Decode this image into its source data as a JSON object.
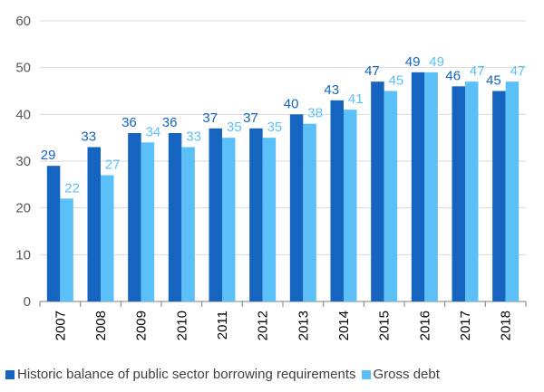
{
  "chart_data": {
    "type": "bar",
    "categories": [
      "2007",
      "2008",
      "2009",
      "2010",
      "2011",
      "2012",
      "2013",
      "2014",
      "2015",
      "2016",
      "2017",
      "2018"
    ],
    "series": [
      {
        "name": "Historic balance of public sector borrowing requirements",
        "color": "#1565C0",
        "values": [
          29,
          33,
          36,
          36,
          37,
          37,
          40,
          43,
          47,
          49,
          46,
          45
        ]
      },
      {
        "name": "Gross debt",
        "color": "#5BC0F8",
        "values": [
          22,
          27,
          34,
          33,
          35,
          35,
          38,
          41,
          45,
          49,
          47,
          47
        ]
      }
    ],
    "ylim": [
      0,
      60
    ],
    "yticks": [
      0,
      10,
      20,
      30,
      40,
      50,
      60
    ],
    "grid": true,
    "legend": "bottom",
    "xlabel": "",
    "ylabel": ""
  }
}
